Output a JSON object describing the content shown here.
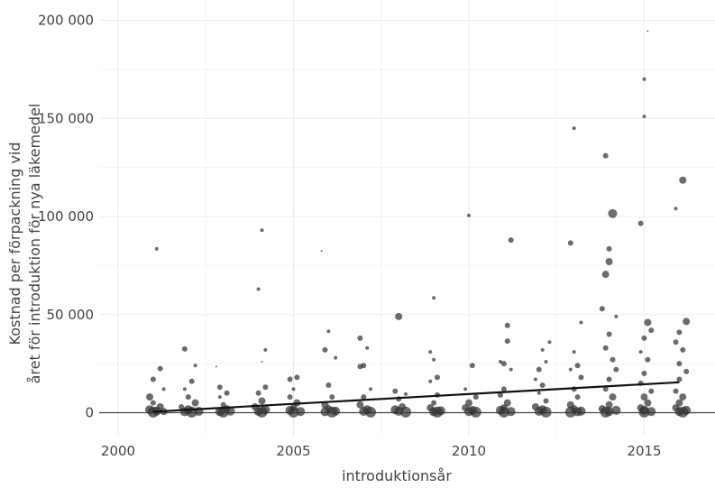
{
  "chart_data": {
    "type": "scatter",
    "xlabel": "introduktionsår",
    "ylabel_lines": [
      "Kostnad per förpackning vid",
      "året för introduktion för nya läkemedel"
    ],
    "xlim": [
      2000,
      2017
    ],
    "ylim": [
      -12000,
      205000
    ],
    "x_ticks": [
      2000,
      2005,
      2010,
      2015
    ],
    "x_tick_labels": [
      "2000",
      "2005",
      "2010",
      "2015"
    ],
    "y_ticks": [
      0,
      50000,
      100000,
      150000,
      200000
    ],
    "y_tick_labels": [
      "0",
      "50 000",
      "100 000",
      "150 000",
      "200 000"
    ],
    "grid": true,
    "point_color": "#333333",
    "trend_line": {
      "x": [
        2001,
        2016
      ],
      "y": [
        500,
        15500
      ],
      "color": "#111111"
    },
    "points": [
      [
        2001.1,
        83500,
        2
      ],
      [
        2001.2,
        22500,
        3
      ],
      [
        2001.0,
        17000,
        3
      ],
      [
        2001.3,
        12000,
        2
      ],
      [
        2000.9,
        8000,
        4
      ],
      [
        2001.0,
        5000,
        3
      ],
      [
        2001.2,
        3000,
        4
      ],
      [
        2000.9,
        1500,
        5
      ],
      [
        2001.1,
        800,
        5
      ],
      [
        2001.3,
        600,
        4
      ],
      [
        2001.0,
        300,
        6
      ],
      [
        2001.9,
        32500,
        3
      ],
      [
        2002.2,
        24000,
        2
      ],
      [
        2002.1,
        16000,
        3
      ],
      [
        2001.9,
        12000,
        2
      ],
      [
        2002.0,
        8000,
        3
      ],
      [
        2002.2,
        5000,
        4
      ],
      [
        2001.8,
        3000,
        3
      ],
      [
        2002.0,
        1500,
        5
      ],
      [
        2002.3,
        700,
        5
      ],
      [
        2001.9,
        500,
        5
      ],
      [
        2002.1,
        300,
        6
      ],
      [
        2002.8,
        23500,
        1
      ],
      [
        2002.9,
        13000,
        3
      ],
      [
        2003.1,
        10000,
        3
      ],
      [
        2002.9,
        8000,
        2
      ],
      [
        2003.0,
        4000,
        3
      ],
      [
        2003.1,
        2000,
        4
      ],
      [
        2003.2,
        800,
        5
      ],
      [
        2002.9,
        500,
        5
      ],
      [
        2003.0,
        300,
        6
      ],
      [
        2004.1,
        93000,
        2
      ],
      [
        2004.0,
        63000,
        2
      ],
      [
        2004.2,
        32000,
        2
      ],
      [
        2004.1,
        26000,
        1
      ],
      [
        2004.2,
        13000,
        3
      ],
      [
        2004.0,
        10000,
        3
      ],
      [
        2004.1,
        6000,
        4
      ],
      [
        2003.9,
        3000,
        4
      ],
      [
        2004.2,
        1500,
        5
      ],
      [
        2004.0,
        700,
        5
      ],
      [
        2004.1,
        300,
        6
      ],
      [
        2004.9,
        17000,
        3
      ],
      [
        2005.1,
        18000,
        3
      ],
      [
        2005.0,
        12000,
        2
      ],
      [
        2004.9,
        8000,
        3
      ],
      [
        2005.1,
        5000,
        4
      ],
      [
        2005.0,
        2500,
        4
      ],
      [
        2004.9,
        1200,
        5
      ],
      [
        2005.2,
        600,
        5
      ],
      [
        2005.0,
        300,
        6
      ],
      [
        2005.8,
        82500,
        1
      ],
      [
        2006.0,
        41500,
        2
      ],
      [
        2005.9,
        32000,
        3
      ],
      [
        2006.2,
        28000,
        2
      ],
      [
        2006.0,
        14000,
        3
      ],
      [
        2006.1,
        8000,
        3
      ],
      [
        2005.9,
        4000,
        4
      ],
      [
        2006.0,
        2000,
        4
      ],
      [
        2006.2,
        800,
        5
      ],
      [
        2005.9,
        500,
        5
      ],
      [
        2006.1,
        300,
        6
      ],
      [
        2006.9,
        38000,
        3
      ],
      [
        2007.1,
        33000,
        2
      ],
      [
        2007.0,
        24000,
        3
      ],
      [
        2006.9,
        23500,
        3
      ],
      [
        2007.2,
        12000,
        2
      ],
      [
        2007.0,
        8000,
        3
      ],
      [
        2006.9,
        4000,
        4
      ],
      [
        2007.1,
        1500,
        5
      ],
      [
        2007.0,
        700,
        5
      ],
      [
        2007.2,
        300,
        6
      ],
      [
        2008.0,
        49000,
        4
      ],
      [
        2007.9,
        11000,
        3
      ],
      [
        2008.2,
        9500,
        2
      ],
      [
        2008.0,
        7000,
        3
      ],
      [
        2008.1,
        3000,
        4
      ],
      [
        2007.9,
        1500,
        5
      ],
      [
        2008.0,
        700,
        5
      ],
      [
        2008.2,
        300,
        6
      ],
      [
        2009.0,
        58500,
        2
      ],
      [
        2008.9,
        31000,
        2
      ],
      [
        2009.0,
        27000,
        2
      ],
      [
        2009.1,
        18000,
        3
      ],
      [
        2008.9,
        16000,
        2
      ],
      [
        2009.1,
        9000,
        3
      ],
      [
        2009.0,
        5000,
        3
      ],
      [
        2008.9,
        2500,
        4
      ],
      [
        2009.2,
        1000,
        5
      ],
      [
        2009.0,
        500,
        5
      ],
      [
        2009.1,
        300,
        6
      ],
      [
        2010.0,
        100500,
        2
      ],
      [
        2010.1,
        24000,
        3
      ],
      [
        2009.9,
        12000,
        2
      ],
      [
        2010.2,
        8000,
        3
      ],
      [
        2010.0,
        5000,
        4
      ],
      [
        2009.9,
        2500,
        4
      ],
      [
        2010.1,
        1200,
        5
      ],
      [
        2010.0,
        600,
        5
      ],
      [
        2010.2,
        300,
        6
      ],
      [
        2011.2,
        88000,
        3
      ],
      [
        2011.1,
        44500,
        3
      ],
      [
        2011.1,
        36500,
        3
      ],
      [
        2010.9,
        26000,
        2
      ],
      [
        2011.0,
        25000,
        3
      ],
      [
        2011.2,
        22000,
        2
      ],
      [
        2011.0,
        12000,
        3
      ],
      [
        2010.9,
        9000,
        3
      ],
      [
        2011.1,
        5000,
        4
      ],
      [
        2011.0,
        2500,
        4
      ],
      [
        2010.9,
        1200,
        5
      ],
      [
        2011.2,
        600,
        5
      ],
      [
        2011.0,
        300,
        6
      ],
      [
        2012.3,
        36000,
        2
      ],
      [
        2012.1,
        32000,
        2
      ],
      [
        2012.2,
        26000,
        2
      ],
      [
        2012.0,
        22000,
        3
      ],
      [
        2011.9,
        17000,
        2
      ],
      [
        2012.1,
        14000,
        3
      ],
      [
        2012.0,
        10000,
        2
      ],
      [
        2012.2,
        6000,
        3
      ],
      [
        2011.9,
        3000,
        4
      ],
      [
        2012.1,
        1500,
        5
      ],
      [
        2012.0,
        700,
        5
      ],
      [
        2012.2,
        300,
        6
      ],
      [
        2013.0,
        145000,
        2
      ],
      [
        2012.9,
        86500,
        3
      ],
      [
        2013.2,
        46000,
        2
      ],
      [
        2013.0,
        31000,
        2
      ],
      [
        2013.1,
        24000,
        3
      ],
      [
        2012.9,
        22000,
        2
      ],
      [
        2013.2,
        18000,
        3
      ],
      [
        2013.0,
        12000,
        3
      ],
      [
        2013.1,
        8000,
        3
      ],
      [
        2012.9,
        4000,
        4
      ],
      [
        2013.0,
        2000,
        4
      ],
      [
        2013.2,
        800,
        5
      ],
      [
        2013.1,
        500,
        5
      ],
      [
        2012.9,
        300,
        6
      ],
      [
        2013.9,
        131000,
        3
      ],
      [
        2014.1,
        101500,
        5
      ],
      [
        2014.0,
        83500,
        3
      ],
      [
        2014.0,
        77000,
        4
      ],
      [
        2013.9,
        70500,
        4
      ],
      [
        2013.8,
        53000,
        3
      ],
      [
        2014.2,
        49000,
        2
      ],
      [
        2014.0,
        40000,
        3
      ],
      [
        2013.9,
        33000,
        3
      ],
      [
        2014.1,
        27000,
        3
      ],
      [
        2014.2,
        22000,
        3
      ],
      [
        2014.0,
        17000,
        3
      ],
      [
        2013.9,
        12000,
        3
      ],
      [
        2014.1,
        8000,
        4
      ],
      [
        2014.0,
        4000,
        4
      ],
      [
        2013.8,
        2000,
        4
      ],
      [
        2014.2,
        1200,
        5
      ],
      [
        2014.0,
        600,
        5
      ],
      [
        2013.9,
        300,
        6
      ],
      [
        2015.1,
        194500,
        1
      ],
      [
        2015.0,
        170000,
        2
      ],
      [
        2015.0,
        151000,
        2
      ],
      [
        2014.9,
        96500,
        3
      ],
      [
        2015.1,
        46000,
        4
      ],
      [
        2015.2,
        42000,
        3
      ],
      [
        2015.0,
        38000,
        3
      ],
      [
        2014.9,
        31000,
        2
      ],
      [
        2015.1,
        27000,
        3
      ],
      [
        2015.0,
        20000,
        3
      ],
      [
        2014.9,
        15000,
        3
      ],
      [
        2015.2,
        11000,
        3
      ],
      [
        2015.0,
        8000,
        4
      ],
      [
        2015.1,
        5000,
        4
      ],
      [
        2014.9,
        2500,
        4
      ],
      [
        2015.0,
        1200,
        5
      ],
      [
        2015.2,
        600,
        5
      ],
      [
        2015.0,
        300,
        6
      ],
      [
        2016.1,
        118500,
        4
      ],
      [
        2015.9,
        104000,
        2
      ],
      [
        2016.2,
        46500,
        4
      ],
      [
        2016.0,
        41000,
        3
      ],
      [
        2015.9,
        36000,
        3
      ],
      [
        2016.1,
        32000,
        3
      ],
      [
        2016.0,
        25000,
        3
      ],
      [
        2016.2,
        21000,
        3
      ],
      [
        2016.0,
        17000,
        3
      ],
      [
        2015.9,
        11000,
        3
      ],
      [
        2016.1,
        8000,
        4
      ],
      [
        2016.0,
        5000,
        4
      ],
      [
        2015.9,
        2500,
        4
      ],
      [
        2016.2,
        1200,
        5
      ],
      [
        2016.0,
        600,
        5
      ],
      [
        2016.1,
        300,
        6
      ]
    ]
  }
}
